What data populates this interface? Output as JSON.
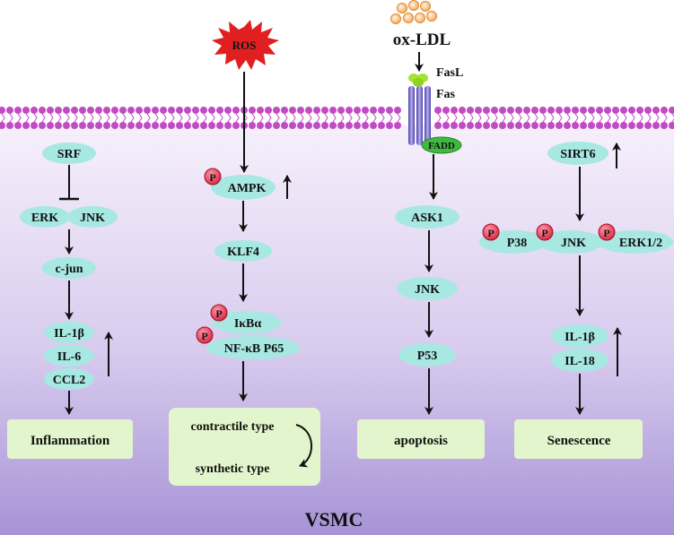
{
  "colors": {
    "top_background": "#ffffff",
    "cytoplasm_gradient_top": "#f6f0fb",
    "cytoplasm_gradient_bottom": "#a793d6",
    "membrane_lipid": "#c04bc4",
    "node_fill": "#a8e8e3",
    "outcome_box_fill": "#e3f5cc",
    "phospho_marker": "#e33a55",
    "ros_burst": "#e02020",
    "oxldl_particle": "#f3a14b",
    "fasl": "#a4e234",
    "fas_receptor": "#7c6fd0",
    "fadd": "#3fb93f"
  },
  "icons": {
    "ros": "red-starburst",
    "ox_ldl": "orange-particle-cluster",
    "fas_receptor": "transmembrane-receptor",
    "phospho": "red-circle-P",
    "up_arrow": "up-arrow",
    "inhibition": "blunt-arrow"
  },
  "labels": {
    "phospho": "P",
    "cell": "VSMC"
  },
  "stimuli": {
    "ros": "ROS",
    "ox_ldl": "ox-LDL",
    "fasl": "FasL",
    "fas": "Fas",
    "fadd": "FADD"
  },
  "pathway_inflammation": {
    "srf": "SRF",
    "erk": "ERK",
    "jnk": "JNK",
    "cjun": "c-jun",
    "il1b": "IL-1β",
    "il6": "IL-6",
    "ccl2": "CCL2",
    "outcome": "Inflammation"
  },
  "pathway_phenotype": {
    "ampk": "AMPK",
    "klf4": "KLF4",
    "ikba": "IκBα",
    "nfkb": "NF-κB P65",
    "outcome_line1": "contractile type",
    "outcome_line2": "synthetic type"
  },
  "pathway_apoptosis": {
    "ask1": "ASK1",
    "jnk": "JNK",
    "p53": "P53",
    "outcome": "apoptosis"
  },
  "pathway_senescence": {
    "sirt6": "SIRT6",
    "p38": "P38",
    "jnk": "JNK",
    "erk12": "ERK1/2",
    "il1b": "IL-1β",
    "il18": "IL-18",
    "outcome": "Senescence"
  }
}
